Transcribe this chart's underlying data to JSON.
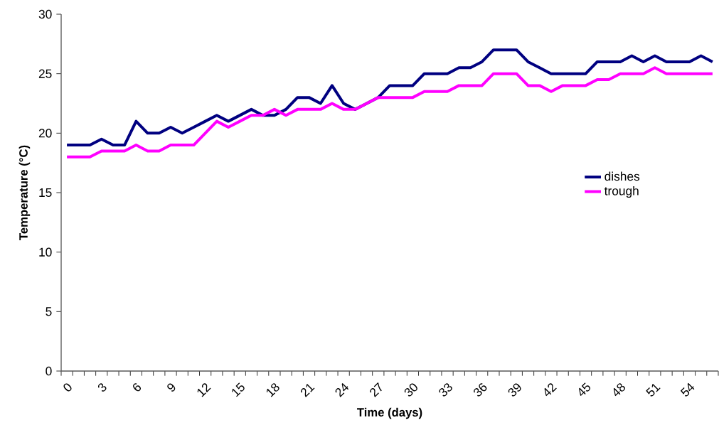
{
  "chart_data": {
    "type": "line",
    "xlabel": "Time (days)",
    "ylabel": "Temperature (°C)",
    "categories": [
      "0",
      null,
      null,
      "3",
      null,
      null,
      "6",
      null,
      null,
      "9",
      null,
      null,
      "12",
      null,
      null,
      "15",
      null,
      null,
      "18",
      null,
      null,
      "21",
      null,
      null,
      "24",
      null,
      null,
      "27",
      null,
      null,
      "30",
      null,
      null,
      "33",
      null,
      null,
      "36",
      null,
      null,
      "39",
      null,
      null,
      "42",
      null,
      null,
      "45",
      null,
      null,
      "48",
      null,
      null,
      "51",
      null,
      null,
      "54",
      null,
      null
    ],
    "series": [
      {
        "name": "dishes",
        "color": "#000080",
        "values": [
          19,
          19,
          19,
          19.5,
          19,
          19,
          21,
          20,
          20,
          20.5,
          20,
          20.5,
          21,
          21.5,
          21,
          21.5,
          22,
          21.5,
          21.5,
          22,
          23,
          23,
          22.5,
          24,
          22.5,
          22,
          null,
          23,
          24,
          24,
          24,
          25,
          25,
          25,
          25.5,
          25.5,
          26,
          27,
          27,
          27,
          26,
          25.5,
          25,
          25,
          25,
          25,
          26,
          26,
          26,
          26.5,
          26,
          26.5,
          26,
          26,
          26,
          26.5,
          26
        ]
      },
      {
        "name": "trough",
        "color": "#ff00ff",
        "values": [
          18,
          18,
          18,
          18.5,
          18.5,
          18.5,
          19,
          18.5,
          18.5,
          19,
          19,
          19,
          20,
          21,
          20.5,
          21,
          21.5,
          21.5,
          22,
          21.5,
          22,
          22,
          22,
          22.5,
          22,
          22,
          22.5,
          23,
          23,
          23,
          23,
          23.5,
          23.5,
          23.5,
          24,
          24,
          24,
          25,
          25,
          25,
          24,
          24,
          23.5,
          24,
          24,
          24,
          24.5,
          24.5,
          25,
          25,
          25,
          25.5,
          25,
          25,
          25,
          25,
          25
        ]
      }
    ],
    "ylim": [
      0,
      30
    ],
    "yticks": [
      0,
      5,
      10,
      15,
      20,
      25,
      30
    ],
    "legend": "right",
    "grid": false,
    "marker": "none",
    "line_style": "solid"
  }
}
